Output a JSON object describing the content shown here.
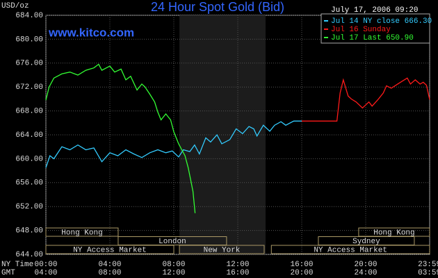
{
  "chart_data": {
    "type": "line",
    "title": "24 Hour Spot Gold (Bid)",
    "timestamp": "July 17, 2006 09:20",
    "y_label": "USD/oz",
    "watermark": "www.kitco.com",
    "xlim": [
      0,
      24
    ],
    "xticks": [
      {
        "value": 0,
        "label": "00:00"
      },
      {
        "value": 4,
        "label": "04:00"
      },
      {
        "value": 8,
        "label": "08:00"
      },
      {
        "value": 12,
        "label": "12:00"
      },
      {
        "value": 16,
        "label": "16:00"
      },
      {
        "value": 20,
        "label": "20:00"
      },
      {
        "value": 23.983,
        "label": "23:59"
      }
    ],
    "gmt_labels": [
      "04:00",
      "08:00",
      "12:00",
      "16:00",
      "20:00",
      "24:00",
      "03:59"
    ],
    "x_row_labels": [
      "NY Time",
      "GMT"
    ],
    "ylim": [
      644,
      684
    ],
    "yticks": [
      {
        "value": 644,
        "label": "644.00"
      },
      {
        "value": 648,
        "label": "648.00"
      },
      {
        "value": 652,
        "label": "652.00"
      },
      {
        "value": 656,
        "label": "656.00"
      },
      {
        "value": 660,
        "label": "660.00"
      },
      {
        "value": 664,
        "label": "664.00"
      },
      {
        "value": 668,
        "label": "668.00"
      },
      {
        "value": 672,
        "label": "672.00"
      },
      {
        "value": 676,
        "label": "676.00"
      },
      {
        "value": 680,
        "label": "680.00"
      },
      {
        "value": 684,
        "label": "684.00"
      }
    ],
    "grid": true,
    "shaded_region": [
      8.35,
      13.74
    ],
    "sessions": [
      {
        "name": "Hong Kong",
        "start": 0,
        "end": 4.52,
        "row": 0
      },
      {
        "name": "Hong Kong",
        "start": 19.56,
        "end": 24,
        "row": 0
      },
      {
        "name": "London",
        "start": 4.52,
        "end": 11.3,
        "row": 1
      },
      {
        "name": "Sydney",
        "start": 17.04,
        "end": 23.04,
        "row": 1
      },
      {
        "name": "NY Access Market",
        "start": 0,
        "end": 8,
        "row": 2
      },
      {
        "name": "New York",
        "start": 8.35,
        "end": 13.65,
        "row": 2
      },
      {
        "name": "NY Access Market",
        "start": 14.1,
        "end": 24,
        "row": 2
      }
    ],
    "series": [
      {
        "name": "Jul 14 NY close 666.30",
        "color": "#33ccff",
        "x": [
          0,
          0.25,
          0.5,
          1,
          1.5,
          2,
          2.5,
          3,
          3.5,
          4,
          4.5,
          5,
          5.5,
          6,
          6.5,
          7,
          7.5,
          7.9,
          8.3,
          8.6,
          9,
          9.3,
          9.6,
          10,
          10.3,
          10.7,
          11,
          11.5,
          11.9,
          12.3,
          12.7,
          13,
          13.2,
          13.6,
          14,
          14.3,
          14.7,
          15,
          15.5,
          16
        ],
        "values": [
          658.5,
          660.5,
          660,
          662,
          661.5,
          662.3,
          661.5,
          661.8,
          659.5,
          661,
          660.5,
          661.5,
          660.8,
          660.2,
          661,
          661.5,
          661,
          661.3,
          660.3,
          661.5,
          661.2,
          662.3,
          660.8,
          663.5,
          662.8,
          664,
          662.5,
          663.2,
          665,
          664.2,
          665.4,
          665,
          663.8,
          665.6,
          664.6,
          665.6,
          666.2,
          665.6,
          666.3,
          666.3
        ]
      },
      {
        "name": "Jul 16 Sunday",
        "color": "#ff1a1a",
        "x": [
          16,
          18.2,
          18.4,
          18.6,
          18.9,
          19.1,
          19.4,
          19.8,
          20.2,
          20.4,
          20.8,
          21.1,
          21.3,
          21.6,
          22,
          22.3,
          22.6,
          22.8,
          23.1,
          23.4,
          23.6,
          23.8,
          24
        ],
        "values": [
          666.3,
          666.3,
          671,
          673.2,
          670.5,
          670,
          669.5,
          668.5,
          669.5,
          668.8,
          670,
          671,
          672.2,
          671.8,
          672.5,
          673,
          673.5,
          672.5,
          673.2,
          672.5,
          672.8,
          672.3,
          669.9
        ]
      },
      {
        "name": "Jul 17 Last 650.90",
        "color": "#33ff33",
        "x": [
          0,
          0.2,
          0.5,
          1,
          1.5,
          2,
          2.5,
          3,
          3.3,
          3.5,
          4,
          4.3,
          4.7,
          5,
          5.3,
          5.7,
          6,
          6.2,
          6.5,
          6.8,
          7,
          7.2,
          7.5,
          7.8,
          8,
          8.3,
          8.5,
          8.7,
          8.9,
          9.05,
          9.2,
          9.33
        ],
        "values": [
          669.8,
          672,
          673.5,
          674.2,
          674.5,
          674,
          674.8,
          675.2,
          675.8,
          674.8,
          675.5,
          674.5,
          675,
          673.2,
          673.8,
          671.5,
          672.5,
          672,
          670.8,
          669.5,
          667.8,
          666.5,
          667.5,
          666.5,
          664.5,
          662.5,
          661.5,
          660.5,
          658.5,
          656.5,
          654.5,
          650.9
        ]
      }
    ]
  }
}
